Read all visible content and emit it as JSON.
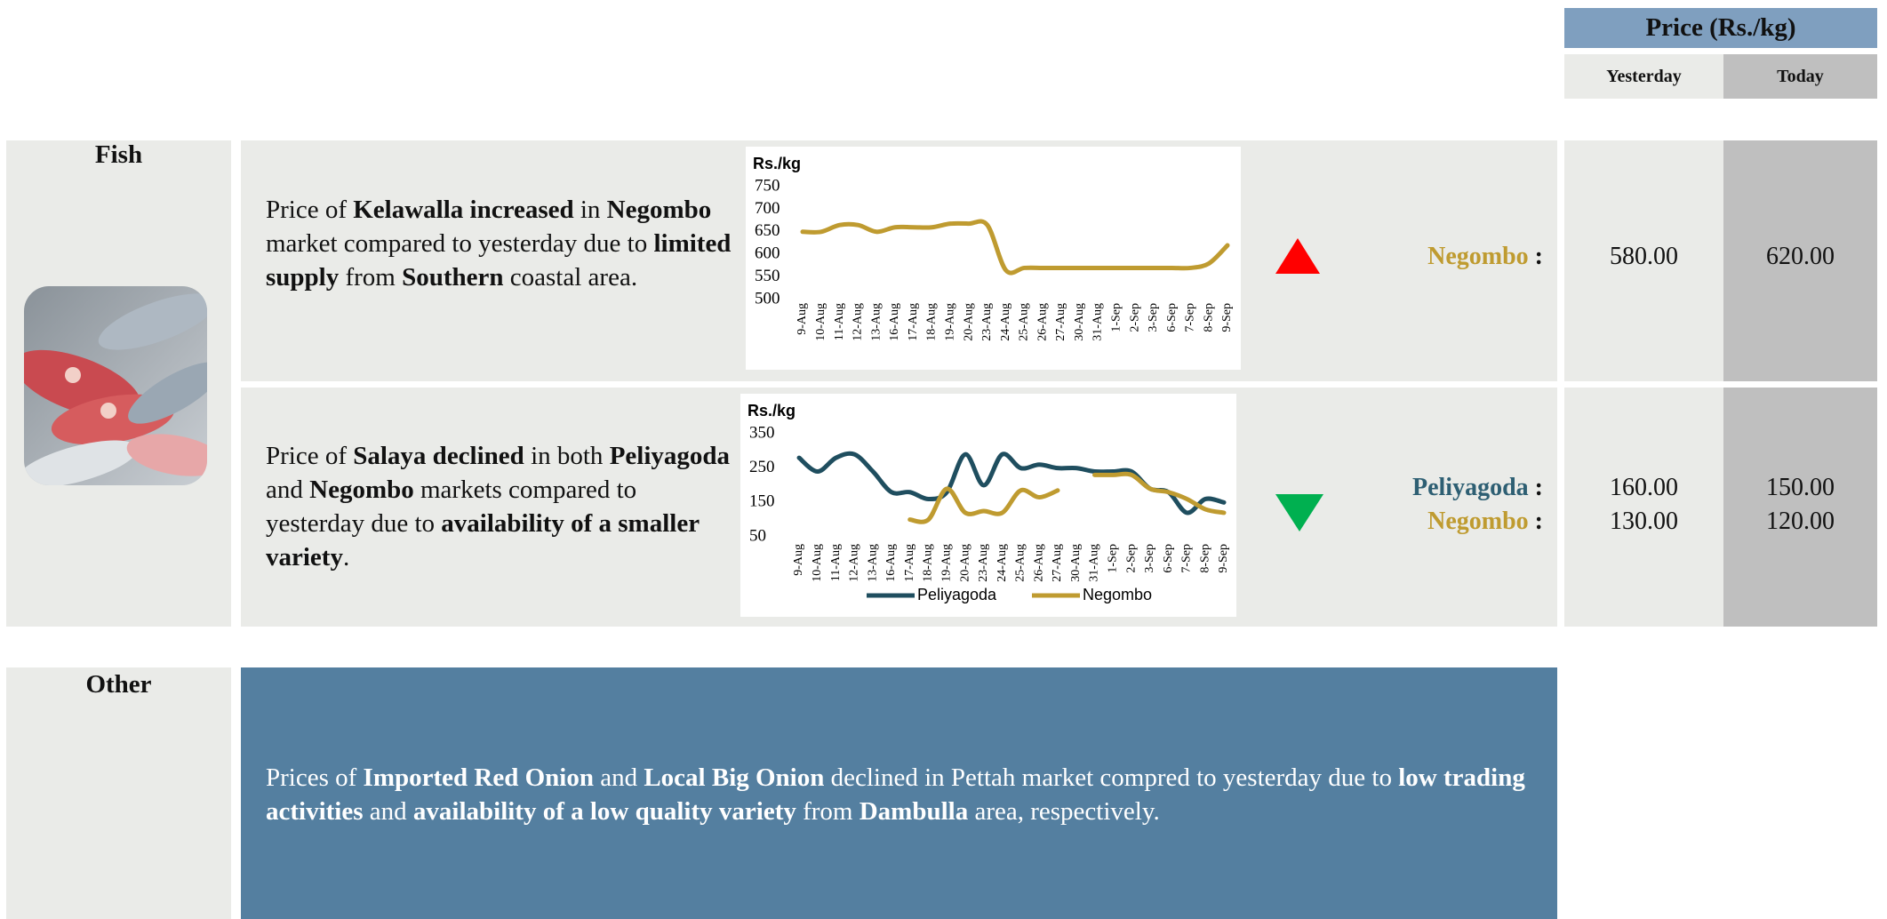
{
  "header": {
    "title": "Price (Rs./kg)",
    "columns": [
      "Yesterday",
      "Today"
    ]
  },
  "label_separator": ":",
  "sections": [
    {
      "title": "Fish",
      "rows": [
        {
          "text": [
            {
              "text": "Price of "
            },
            {
              "text": "Kelawalla increased",
              "bold": true
            },
            {
              "text": " in "
            },
            {
              "text": "Negombo",
              "bold": true
            },
            {
              "text": " market compared to yesterday due to "
            },
            {
              "text": "limited supply",
              "bold": true
            },
            {
              "text": " from "
            },
            {
              "text": "Southern",
              "bold": true
            },
            {
              "text": " coastal area."
            }
          ],
          "markets": [
            {
              "name": "Negombo",
              "color": "#bf9b30",
              "yesterday": "580.00",
              "today": "620.00"
            }
          ]
        },
        {
          "text": [
            {
              "text": "Price of "
            },
            {
              "text": "Salaya declined",
              "bold": true
            },
            {
              "text": " in both "
            },
            {
              "text": "Peliyagoda",
              "bold": true
            },
            {
              "text": " and "
            },
            {
              "text": "Negombo",
              "bold": true
            },
            {
              "text": " markets compared to yesterday due to "
            },
            {
              "text": "availability of a smaller variety",
              "bold": true
            },
            {
              "text": "."
            }
          ],
          "markets": [
            {
              "name": "Peliyagoda",
              "color": "#2e5f73",
              "yesterday": "160.00",
              "today": "150.00"
            },
            {
              "name": "Negombo",
              "color": "#bf9b30",
              "yesterday": "130.00",
              "today": "120.00"
            }
          ]
        }
      ]
    },
    {
      "title": "Other",
      "text": [
        {
          "text": "Prices of "
        },
        {
          "text": "Imported Red Onion",
          "bold": true
        },
        {
          "text": " and "
        },
        {
          "text": "Local Big Onion",
          "bold": true
        },
        {
          "text": " declined in Pettah market compred to yesterday due to "
        },
        {
          "text": "low trading activities",
          "bold": true
        },
        {
          "text": " and "
        },
        {
          "text": "availability of a low quality variety",
          "bold": true
        },
        {
          "text": " from "
        },
        {
          "text": "Dambulla",
          "bold": true
        },
        {
          "text": " area, respectively."
        }
      ]
    }
  ],
  "chart_data": [
    {
      "type": "line",
      "y_label": "Rs./kg",
      "categories": [
        "9-Aug",
        "10-Aug",
        "11-Aug",
        "12-Aug",
        "13-Aug",
        "16-Aug",
        "17-Aug",
        "18-Aug",
        "19-Aug",
        "20-Aug",
        "23-Aug",
        "24-Aug",
        "25-Aug",
        "26-Aug",
        "27-Aug",
        "30-Aug",
        "31-Aug",
        "1-Sep",
        "2-Sep",
        "3-Sep",
        "6-Sep",
        "7-Sep",
        "8-Sep",
        "9-Sep"
      ],
      "series": [
        {
          "color": "#bf9b30",
          "values": [
            650,
            650,
            665,
            665,
            650,
            660,
            660,
            660,
            668,
            668,
            665,
            565,
            570,
            570,
            570,
            570,
            570,
            570,
            570,
            570,
            570,
            570,
            580,
            620
          ]
        }
      ],
      "ylim": [
        500,
        750
      ],
      "yticks": [
        500,
        550,
        600,
        650,
        700,
        750
      ]
    },
    {
      "type": "line",
      "y_label": "Rs./kg",
      "categories": [
        "9-Aug",
        "10-Aug",
        "11-Aug",
        "12-Aug",
        "13-Aug",
        "16-Aug",
        "17-Aug",
        "18-Aug",
        "19-Aug",
        "20-Aug",
        "23-Aug",
        "24-Aug",
        "25-Aug",
        "26-Aug",
        "27-Aug",
        "30-Aug",
        "31-Aug",
        "1-Sep",
        "2-Sep",
        "3-Sep",
        "6-Sep",
        "7-Sep",
        "8-Sep",
        "9-Sep"
      ],
      "series": [
        {
          "name": "Peliyagoda",
          "color": "#1f4e5f",
          "values": [
            280,
            240,
            280,
            290,
            240,
            180,
            180,
            160,
            180,
            290,
            200,
            290,
            250,
            260,
            250,
            250,
            240,
            240,
            240,
            190,
            180,
            120,
            160,
            150
          ]
        },
        {
          "name": "Negombo",
          "color": "#bf9b30",
          "values": [
            null,
            null,
            null,
            null,
            null,
            null,
            100,
            100,
            190,
            120,
            125,
            120,
            185,
            165,
            185,
            null,
            230,
            230,
            230,
            190,
            180,
            160,
            130,
            120
          ]
        }
      ],
      "ylim": [
        50,
        350
      ],
      "yticks": [
        50,
        150,
        250,
        350
      ]
    }
  ]
}
